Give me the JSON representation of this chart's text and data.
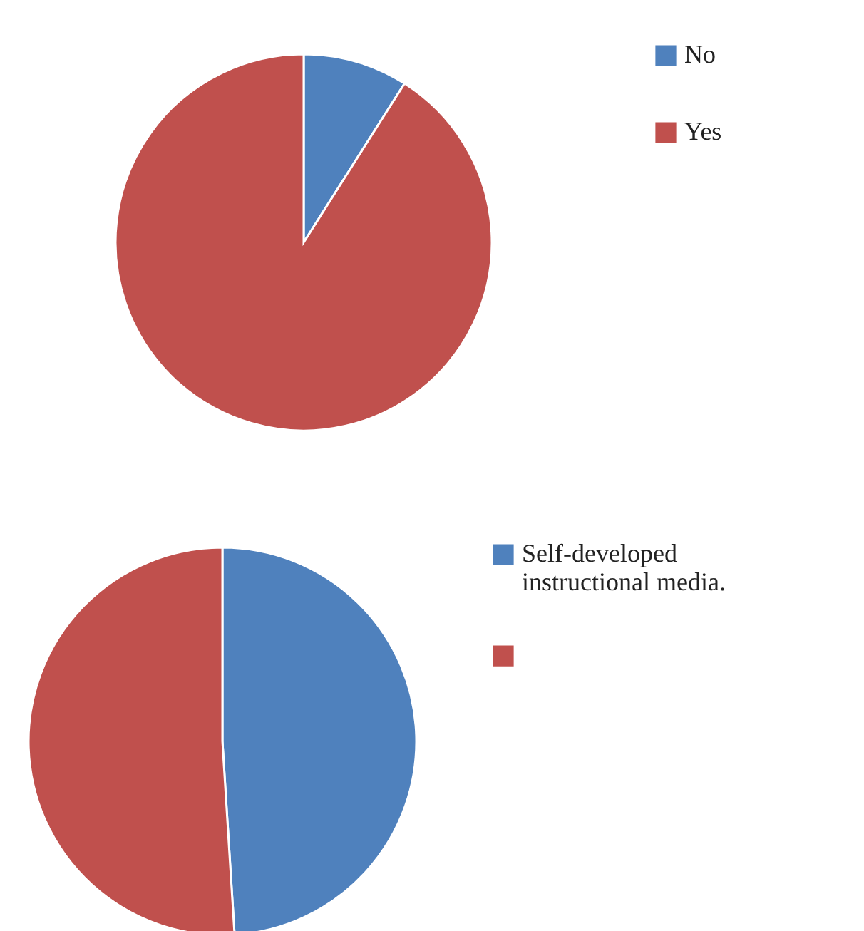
{
  "chart_data": [
    {
      "type": "pie",
      "categories": [
        "No",
        "Yes"
      ],
      "values": [
        9,
        91
      ],
      "colors": [
        "#4f81bd",
        "#c0504d"
      ],
      "legend": "top right"
    },
    {
      "type": "pie",
      "categories": [
        "Self-developed instructional media.",
        null
      ],
      "values": [
        49,
        51
      ],
      "colors": [
        "#4f81bd",
        "#c0504d"
      ],
      "legend": "right"
    }
  ]
}
